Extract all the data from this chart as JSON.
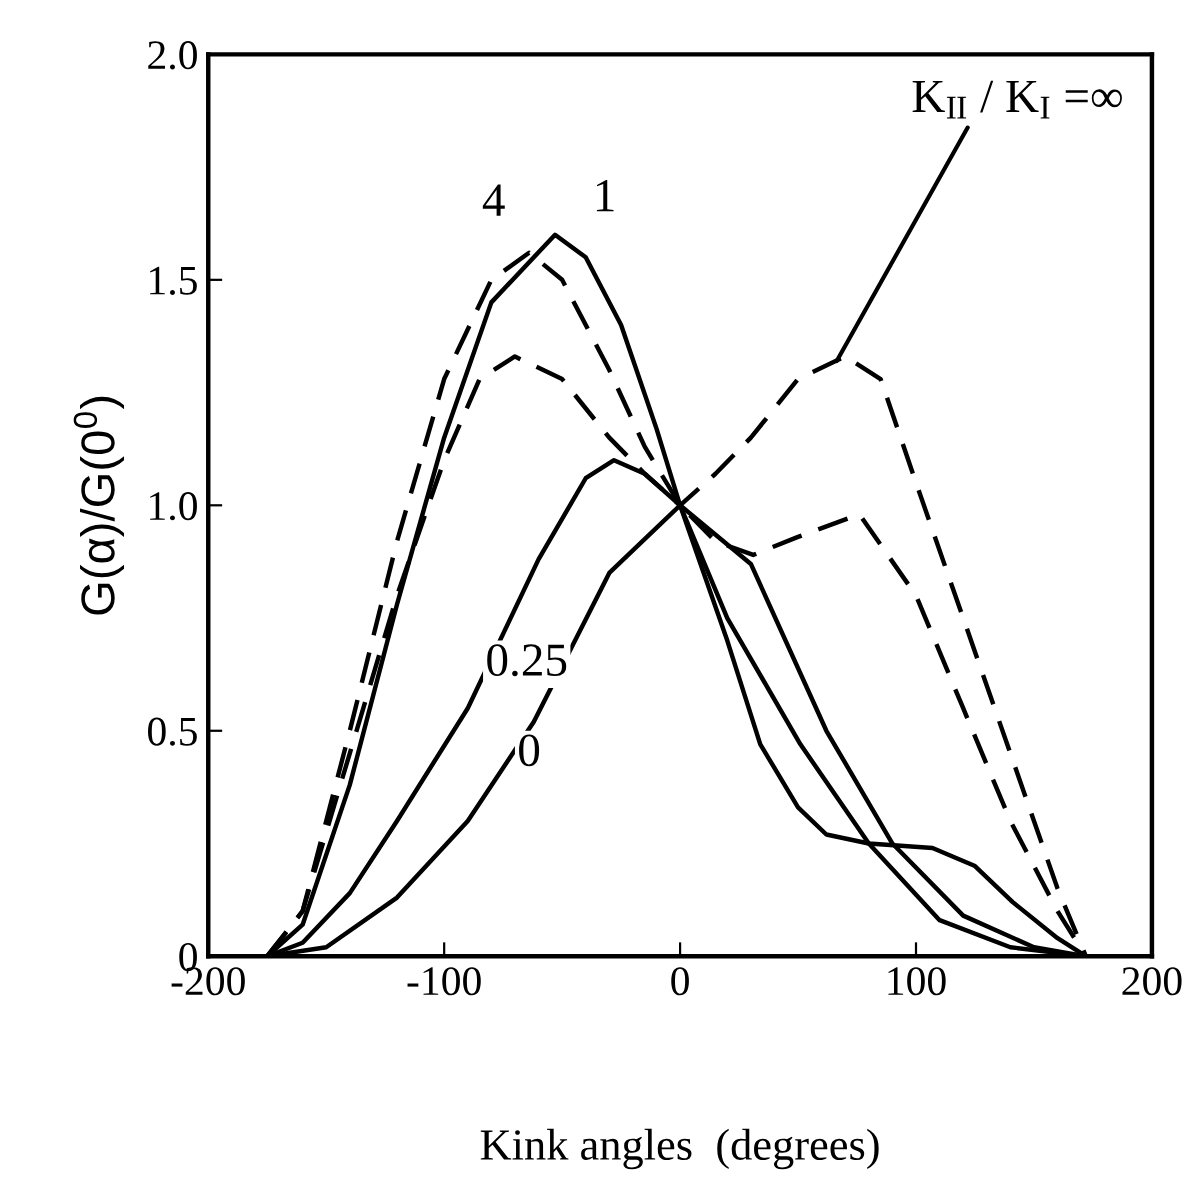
{
  "chart_data": {
    "type": "line",
    "xlabel": "Kink angles  (degrees)",
    "ylabel": "G(α)/G(0$^{0}$)",
    "xlim": [
      -200,
      200
    ],
    "xticks": [
      -200,
      -100,
      0,
      100,
      200
    ],
    "ylim": [
      0,
      2.0
    ],
    "yticks": [
      0,
      {
        "value": 0.5,
        "label": "0.5"
      },
      {
        "value": 1.0,
        "label": "1.0"
      },
      {
        "value": 1.5,
        "label": "1.5"
      },
      {
        "value": 2.0,
        "label": "2.0"
      }
    ],
    "grid": false,
    "legend": false,
    "series": [
      {
        "name": "0",
        "color": "#000000",
        "line_style": "solid",
        "x": [
          -175,
          -150,
          -120,
          -90,
          -62,
          -30,
          0,
          30,
          62,
          90,
          120,
          150,
          172
        ],
        "values": [
          0,
          0.02,
          0.13,
          0.3,
          0.52,
          0.85,
          1.0,
          0.87,
          0.5,
          0.25,
          0.09,
          0.02,
          0
        ]
      },
      {
        "name": "0.25",
        "color": "#000000",
        "line_style": "solid",
        "x": [
          -175,
          -160,
          -140,
          -120,
          -90,
          -60,
          -40,
          -28,
          -15,
          0,
          20,
          51,
          80,
          110,
          140,
          172
        ],
        "values": [
          0,
          0.03,
          0.14,
          0.3,
          0.55,
          0.88,
          1.06,
          1.1,
          1.07,
          1.0,
          0.75,
          0.47,
          0.25,
          0.08,
          0.02,
          0
        ]
      },
      {
        "name": "1",
        "color": "#000000",
        "line_style": "solid",
        "x": [
          -175,
          -160,
          -140,
          -120,
          -100,
          -80,
          -53,
          -40,
          -25,
          -10,
          0,
          10,
          20,
          34,
          50,
          62,
          80,
          107,
          125,
          141,
          160,
          172
        ],
        "values": [
          0,
          0.07,
          0.38,
          0.78,
          1.15,
          1.45,
          1.6,
          1.55,
          1.4,
          1.17,
          1.0,
          0.85,
          0.7,
          0.47,
          0.33,
          0.27,
          0.25,
          0.24,
          0.2,
          0.12,
          0.04,
          0
        ]
      },
      {
        "name": "4",
        "color": "#000000",
        "line_style": "dashed",
        "x": [
          -175,
          -160,
          -140,
          -120,
          -100,
          -80,
          -64,
          -50,
          -30,
          -15,
          0,
          15,
          31,
          50,
          76,
          100,
          120,
          140,
          160,
          172
        ],
        "values": [
          0,
          0.1,
          0.5,
          0.92,
          1.28,
          1.5,
          1.56,
          1.5,
          1.3,
          1.13,
          1.0,
          0.92,
          0.89,
          0.93,
          0.98,
          0.8,
          0.55,
          0.3,
          0.1,
          0
        ]
      },
      {
        "name": "K$_{II}$ / K$_{I}$ =∞",
        "color": "#000000",
        "line_style": "dashed",
        "x": [
          -175,
          -160,
          -140,
          -120,
          -100,
          -85,
          -70,
          -50,
          -30,
          -15,
          0,
          15,
          30,
          50,
          70,
          85,
          100,
          120,
          140,
          160,
          172
        ],
        "values": [
          0,
          0.1,
          0.45,
          0.8,
          1.1,
          1.28,
          1.33,
          1.28,
          1.15,
          1.07,
          1.0,
          1.07,
          1.15,
          1.28,
          1.33,
          1.28,
          1.05,
          0.75,
          0.45,
          0.15,
          0
        ]
      }
    ]
  }
}
